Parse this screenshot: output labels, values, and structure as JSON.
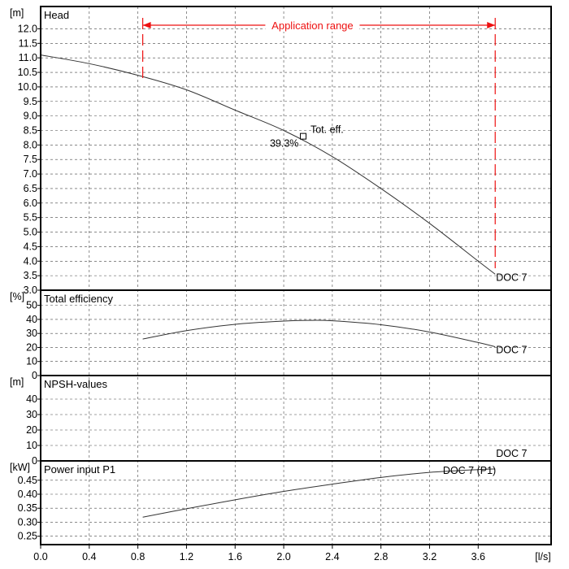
{
  "chart_data": {
    "type": "line",
    "xlabel": "[l/s]",
    "x_ticks": [
      "0.0",
      "0.4",
      "0.8",
      "1.2",
      "1.6",
      "2.0",
      "2.4",
      "2.8",
      "3.2",
      "3.6"
    ],
    "x_range": [
      0,
      4.2
    ],
    "application_range": {
      "label": "Application range",
      "from": 0.84,
      "to": 3.74
    },
    "panels": [
      {
        "id": "head",
        "title": "Head",
        "unit": "[m]",
        "ylim": [
          3.0,
          12.6
        ],
        "ticks": [
          "3.0",
          "3.5",
          "4.0",
          "4.5",
          "5.0",
          "5.5",
          "6.0",
          "6.5",
          "7.0",
          "7.5",
          "8.0",
          "8.5",
          "9.0",
          "9.5",
          "10.0",
          "10.5",
          "11.0",
          "11.5",
          "12.0"
        ],
        "series": [
          {
            "label": "DOC 7",
            "x": [
              0.0,
              0.4,
              0.8,
              1.2,
              1.6,
              2.0,
              2.4,
              2.8,
              3.2,
              3.6,
              3.74
            ],
            "y": [
              11.1,
              10.8,
              10.4,
              9.9,
              9.2,
              8.5,
              7.6,
              6.5,
              5.3,
              4.0,
              3.55
            ]
          }
        ],
        "annotation": {
          "label": "Tot. eff.",
          "value": "39.3%",
          "x": 2.16,
          "y": 8.3
        }
      },
      {
        "id": "efficiency",
        "title": "Total efficiency",
        "unit": "[%]",
        "ylim": [
          0,
          55
        ],
        "ticks": [
          "0",
          "10",
          "20",
          "30",
          "40",
          "50"
        ],
        "series": [
          {
            "label": "DOC 7",
            "x": [
              0.84,
              1.2,
              1.6,
              2.0,
              2.2,
              2.4,
              2.8,
              3.2,
              3.6,
              3.74
            ],
            "y": [
              26.0,
              32.0,
              36.5,
              38.8,
              39.3,
              39.0,
              36.2,
              31.0,
              23.5,
              20.5
            ]
          }
        ]
      },
      {
        "id": "npsh",
        "title": "NPSH-values",
        "unit": "[m]",
        "ylim": [
          0,
          50
        ],
        "ticks": [
          "0",
          "10",
          "20",
          "30",
          "40"
        ],
        "series": [
          {
            "label": "DOC 7",
            "x": [],
            "y": []
          }
        ]
      },
      {
        "id": "power",
        "title": "Power input P1",
        "unit": "[kW]",
        "ylim": [
          0.22,
          0.49
        ],
        "ticks": [
          "0.25",
          "0.30",
          "0.35",
          "0.40",
          "0.45"
        ],
        "series": [
          {
            "label": "DOC 7 (P1)",
            "x": [
              0.84,
              1.2,
              1.6,
              2.0,
              2.4,
              2.8,
              3.2,
              3.6,
              3.74
            ],
            "y": [
              0.318,
              0.348,
              0.38,
              0.41,
              0.436,
              0.46,
              0.478,
              0.488,
              0.49
            ]
          }
        ]
      }
    ]
  }
}
